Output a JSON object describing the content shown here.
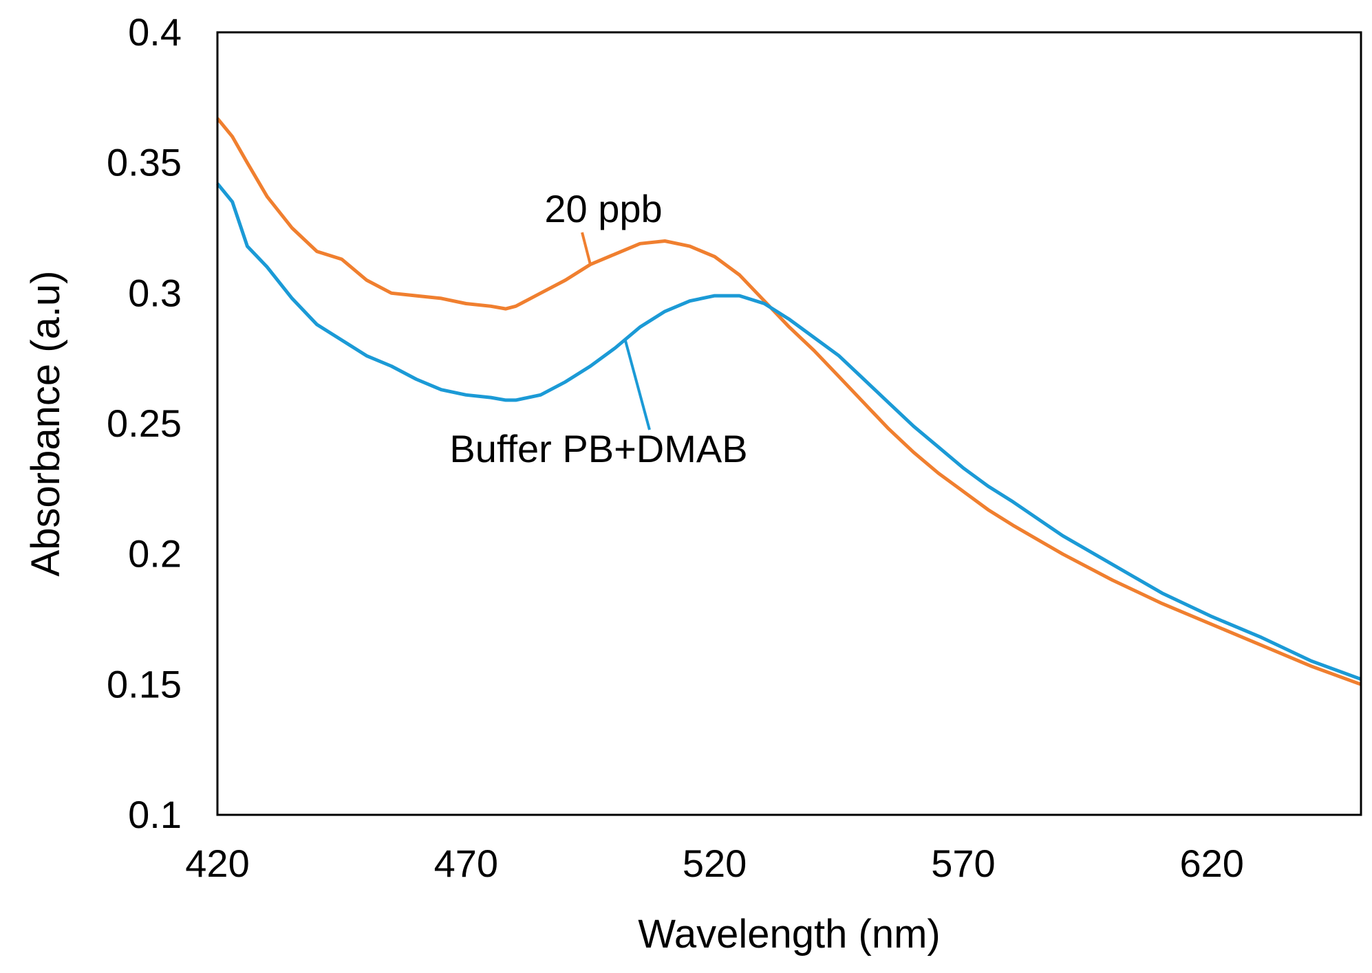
{
  "chart_data": {
    "type": "line",
    "title": "",
    "xlabel": "Wavelength (nm)",
    "ylabel": "Absorbance (a.u)",
    "xlim": [
      420,
      650
    ],
    "ylim": [
      0.1,
      0.4
    ],
    "xticks": [
      420,
      470,
      520,
      570,
      620
    ],
    "xtick_labels": [
      "420",
      "470",
      "520",
      "570",
      "620"
    ],
    "yticks": [
      0.1,
      0.15,
      0.2,
      0.25,
      0.3,
      0.35,
      0.4
    ],
    "ytick_labels": [
      "0.1",
      "0.15",
      "0.2",
      "0.25",
      "0.3",
      "0.35",
      "0.4"
    ],
    "grid": false,
    "series": [
      {
        "name": "20 ppb",
        "color": "#F07F2F",
        "x": [
          420,
          423,
          426,
          430,
          435,
          440,
          445,
          450,
          455,
          460,
          465,
          470,
          475,
          478,
          480,
          485,
          490,
          495,
          500,
          505,
          510,
          515,
          520,
          525,
          530,
          535,
          540,
          545,
          550,
          555,
          560,
          565,
          570,
          575,
          580,
          590,
          600,
          610,
          620,
          630,
          640,
          650
        ],
        "y": [
          0.367,
          0.36,
          0.35,
          0.337,
          0.325,
          0.316,
          0.313,
          0.305,
          0.3,
          0.299,
          0.298,
          0.296,
          0.295,
          0.294,
          0.295,
          0.3,
          0.305,
          0.311,
          0.315,
          0.319,
          0.32,
          0.318,
          0.314,
          0.307,
          0.297,
          0.287,
          0.278,
          0.268,
          0.258,
          0.248,
          0.239,
          0.231,
          0.224,
          0.217,
          0.211,
          0.2,
          0.19,
          0.181,
          0.173,
          0.165,
          0.157,
          0.15
        ]
      },
      {
        "name": "Buffer PB+DMAB",
        "color": "#1B9AD6",
        "x": [
          420,
          423,
          426,
          430,
          435,
          440,
          445,
          450,
          455,
          460,
          465,
          470,
          475,
          478,
          480,
          485,
          490,
          495,
          500,
          505,
          510,
          515,
          520,
          525,
          530,
          535,
          540,
          545,
          550,
          555,
          560,
          565,
          570,
          575,
          580,
          590,
          600,
          610,
          620,
          630,
          640,
          650
        ],
        "y": [
          0.342,
          0.335,
          0.318,
          0.31,
          0.298,
          0.288,
          0.282,
          0.276,
          0.272,
          0.267,
          0.263,
          0.261,
          0.26,
          0.259,
          0.259,
          0.261,
          0.266,
          0.272,
          0.279,
          0.287,
          0.293,
          0.297,
          0.299,
          0.299,
          0.296,
          0.29,
          0.283,
          0.276,
          0.267,
          0.258,
          0.249,
          0.241,
          0.233,
          0.226,
          0.22,
          0.207,
          0.196,
          0.185,
          0.176,
          0.168,
          0.159,
          0.152
        ]
      }
    ],
    "annotations": [
      {
        "text": "20 ppb",
        "series": "20 ppb",
        "point_x": 495
      },
      {
        "text": "Buffer PB+DMAB",
        "series": "Buffer PB+DMAB",
        "point_x": 502
      }
    ]
  }
}
